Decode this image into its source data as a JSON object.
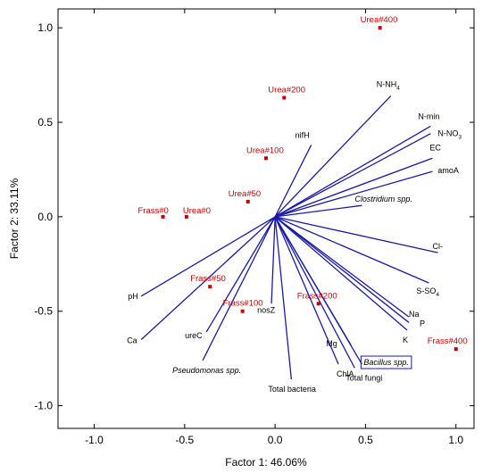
{
  "chart_data": {
    "type": "scatter",
    "title": "",
    "xlabel": "Factor 1: 46.06%",
    "ylabel": "Factor 2: 33.11%",
    "xlim": [
      -1.2,
      1.1
    ],
    "ylim": [
      -1.12,
      1.1
    ],
    "x_ticks": [
      "-1.0",
      "-0.5",
      "0.0",
      "0.5",
      "1.0"
    ],
    "y_ticks": [
      "1.0",
      "0.5",
      "0.0",
      "-0.5",
      "-1.0"
    ],
    "x_tick_values": [
      -1.0,
      -0.5,
      0.0,
      0.5,
      1.0
    ],
    "y_tick_values": [
      1.0,
      0.5,
      0.0,
      -0.5,
      -1.0
    ],
    "grid": false,
    "colors": {
      "observation": "#cc0000",
      "vector": "#1a1aa8",
      "axis": "#000000"
    },
    "observations": [
      {
        "label": "Urea#400",
        "x": 0.58,
        "y": 1.0
      },
      {
        "label": "Urea#200",
        "x": 0.05,
        "y": 0.63
      },
      {
        "label": "Urea#100",
        "x": -0.05,
        "y": 0.31
      },
      {
        "label": "Urea#50",
        "x": -0.15,
        "y": 0.08
      },
      {
        "label": "Frass#0",
        "x": -0.62,
        "y": 0.0
      },
      {
        "label": "Urea#0",
        "x": -0.49,
        "y": 0.0
      },
      {
        "label": "Frass#50",
        "x": -0.36,
        "y": -0.37
      },
      {
        "label": "Frass#100",
        "x": -0.18,
        "y": -0.5
      },
      {
        "label": "Frass#200",
        "x": 0.24,
        "y": -0.46
      },
      {
        "label": "Frass#400",
        "x": 1.0,
        "y": -0.7
      }
    ],
    "vectors": [
      {
        "label": "N-NH4",
        "x": 0.64,
        "y": 0.64
      },
      {
        "label": "N-min",
        "x": 0.86,
        "y": 0.48
      },
      {
        "label": "N-NO3",
        "x": 0.86,
        "y": 0.44
      },
      {
        "label": "EC",
        "x": 0.87,
        "y": 0.31
      },
      {
        "label": "amoA",
        "x": 0.87,
        "y": 0.24
      },
      {
        "label": "nifH",
        "x": 0.2,
        "y": 0.38
      },
      {
        "label": "Clostridium spp.",
        "x": 0.48,
        "y": 0.06
      },
      {
        "label": "Cl-",
        "x": 0.9,
        "y": -0.19
      },
      {
        "label": "S-SO4",
        "x": 0.85,
        "y": -0.35
      },
      {
        "label": "Na",
        "x": 0.74,
        "y": -0.53
      },
      {
        "label": "P",
        "x": 0.74,
        "y": -0.56
      },
      {
        "label": "K",
        "x": 0.73,
        "y": -0.6
      },
      {
        "label": "Mg",
        "x": 0.42,
        "y": -0.68
      },
      {
        "label": "Bacillus spp.",
        "x": 0.48,
        "y": -0.78
      },
      {
        "label": "Total fungi",
        "x": 0.44,
        "y": -0.8
      },
      {
        "label": "ChlA",
        "x": 0.35,
        "y": -0.78
      },
      {
        "label": "Total bacteria",
        "x": 0.09,
        "y": -0.86
      },
      {
        "label": "nosZ",
        "x": -0.02,
        "y": -0.46
      },
      {
        "label": "ureC",
        "x": -0.38,
        "y": -0.61
      },
      {
        "label": "Pseudomonas spp.",
        "x": -0.4,
        "y": -0.76
      },
      {
        "label": "Ca",
        "x": -0.74,
        "y": -0.65
      },
      {
        "label": "pH",
        "x": -0.74,
        "y": -0.42
      }
    ]
  }
}
